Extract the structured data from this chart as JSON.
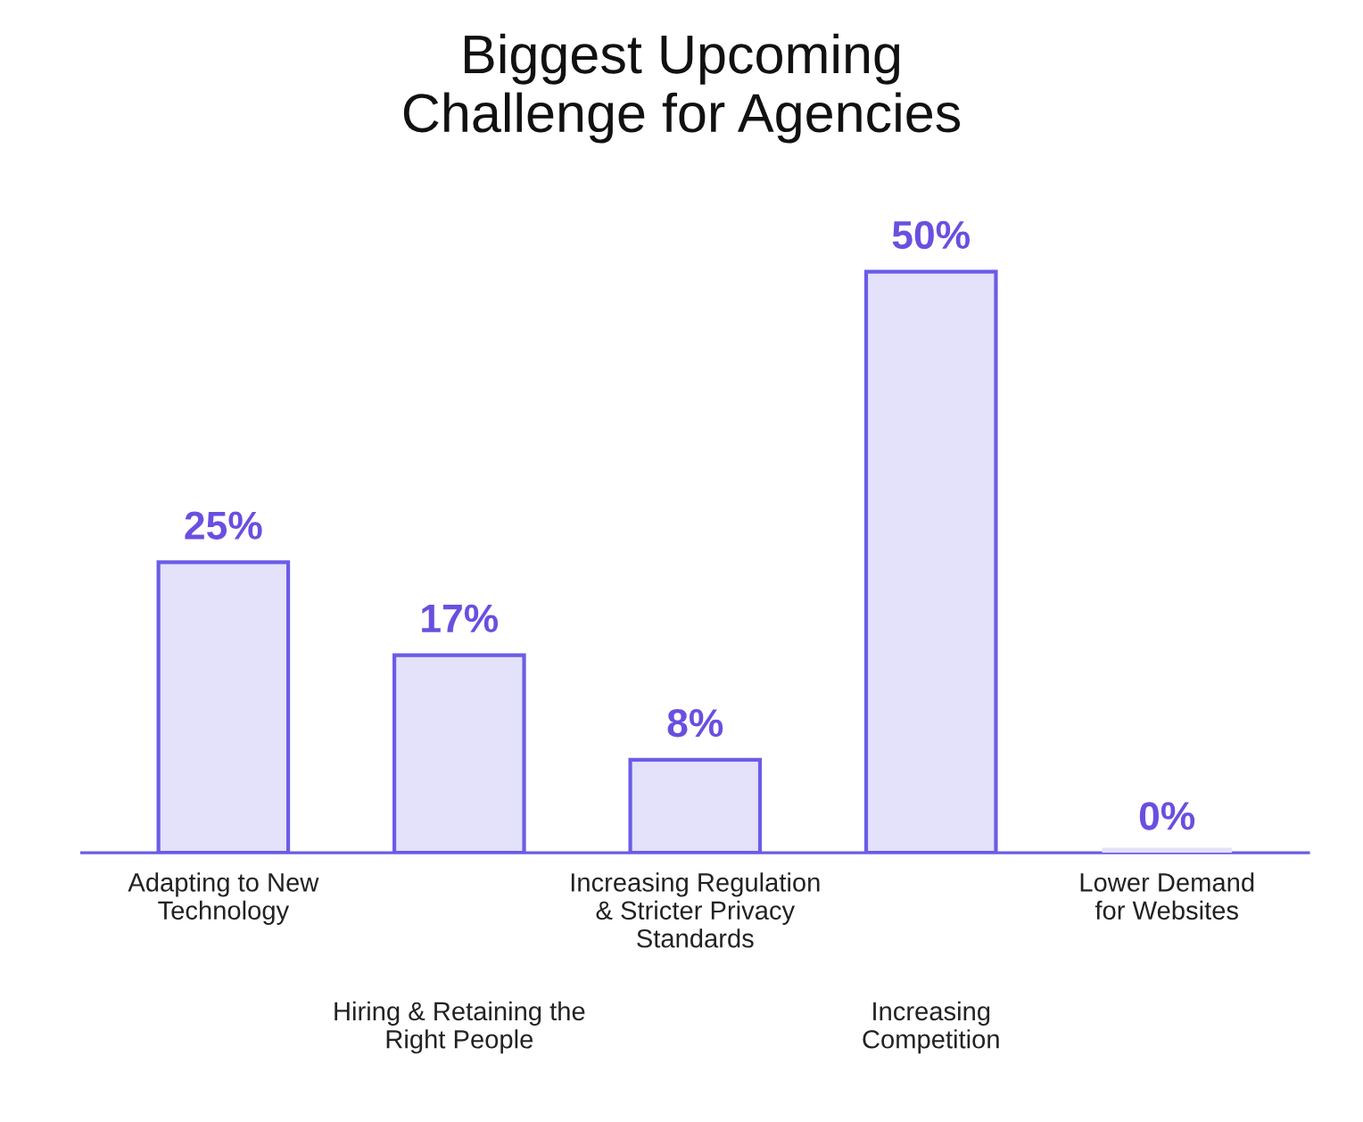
{
  "chart_data": {
    "type": "bar",
    "title": "Biggest Upcoming\nChallenge for Agencies",
    "categories": [
      "Adapting to New\nTechnology",
      "Hiring & Retaining the\nRight People",
      "Increasing Regulation\n& Stricter Privacy\nStandards",
      "Increasing\nCompetition",
      "Lower Demand\nfor Websites"
    ],
    "values": [
      25,
      17,
      8,
      50,
      0
    ],
    "color": "#e4e1fa",
    "value_labels": [
      "25%",
      "17%",
      "8%",
      "50%",
      "0%"
    ],
    "tick_labels": "x",
    "grid": false,
    "legend": false
  }
}
